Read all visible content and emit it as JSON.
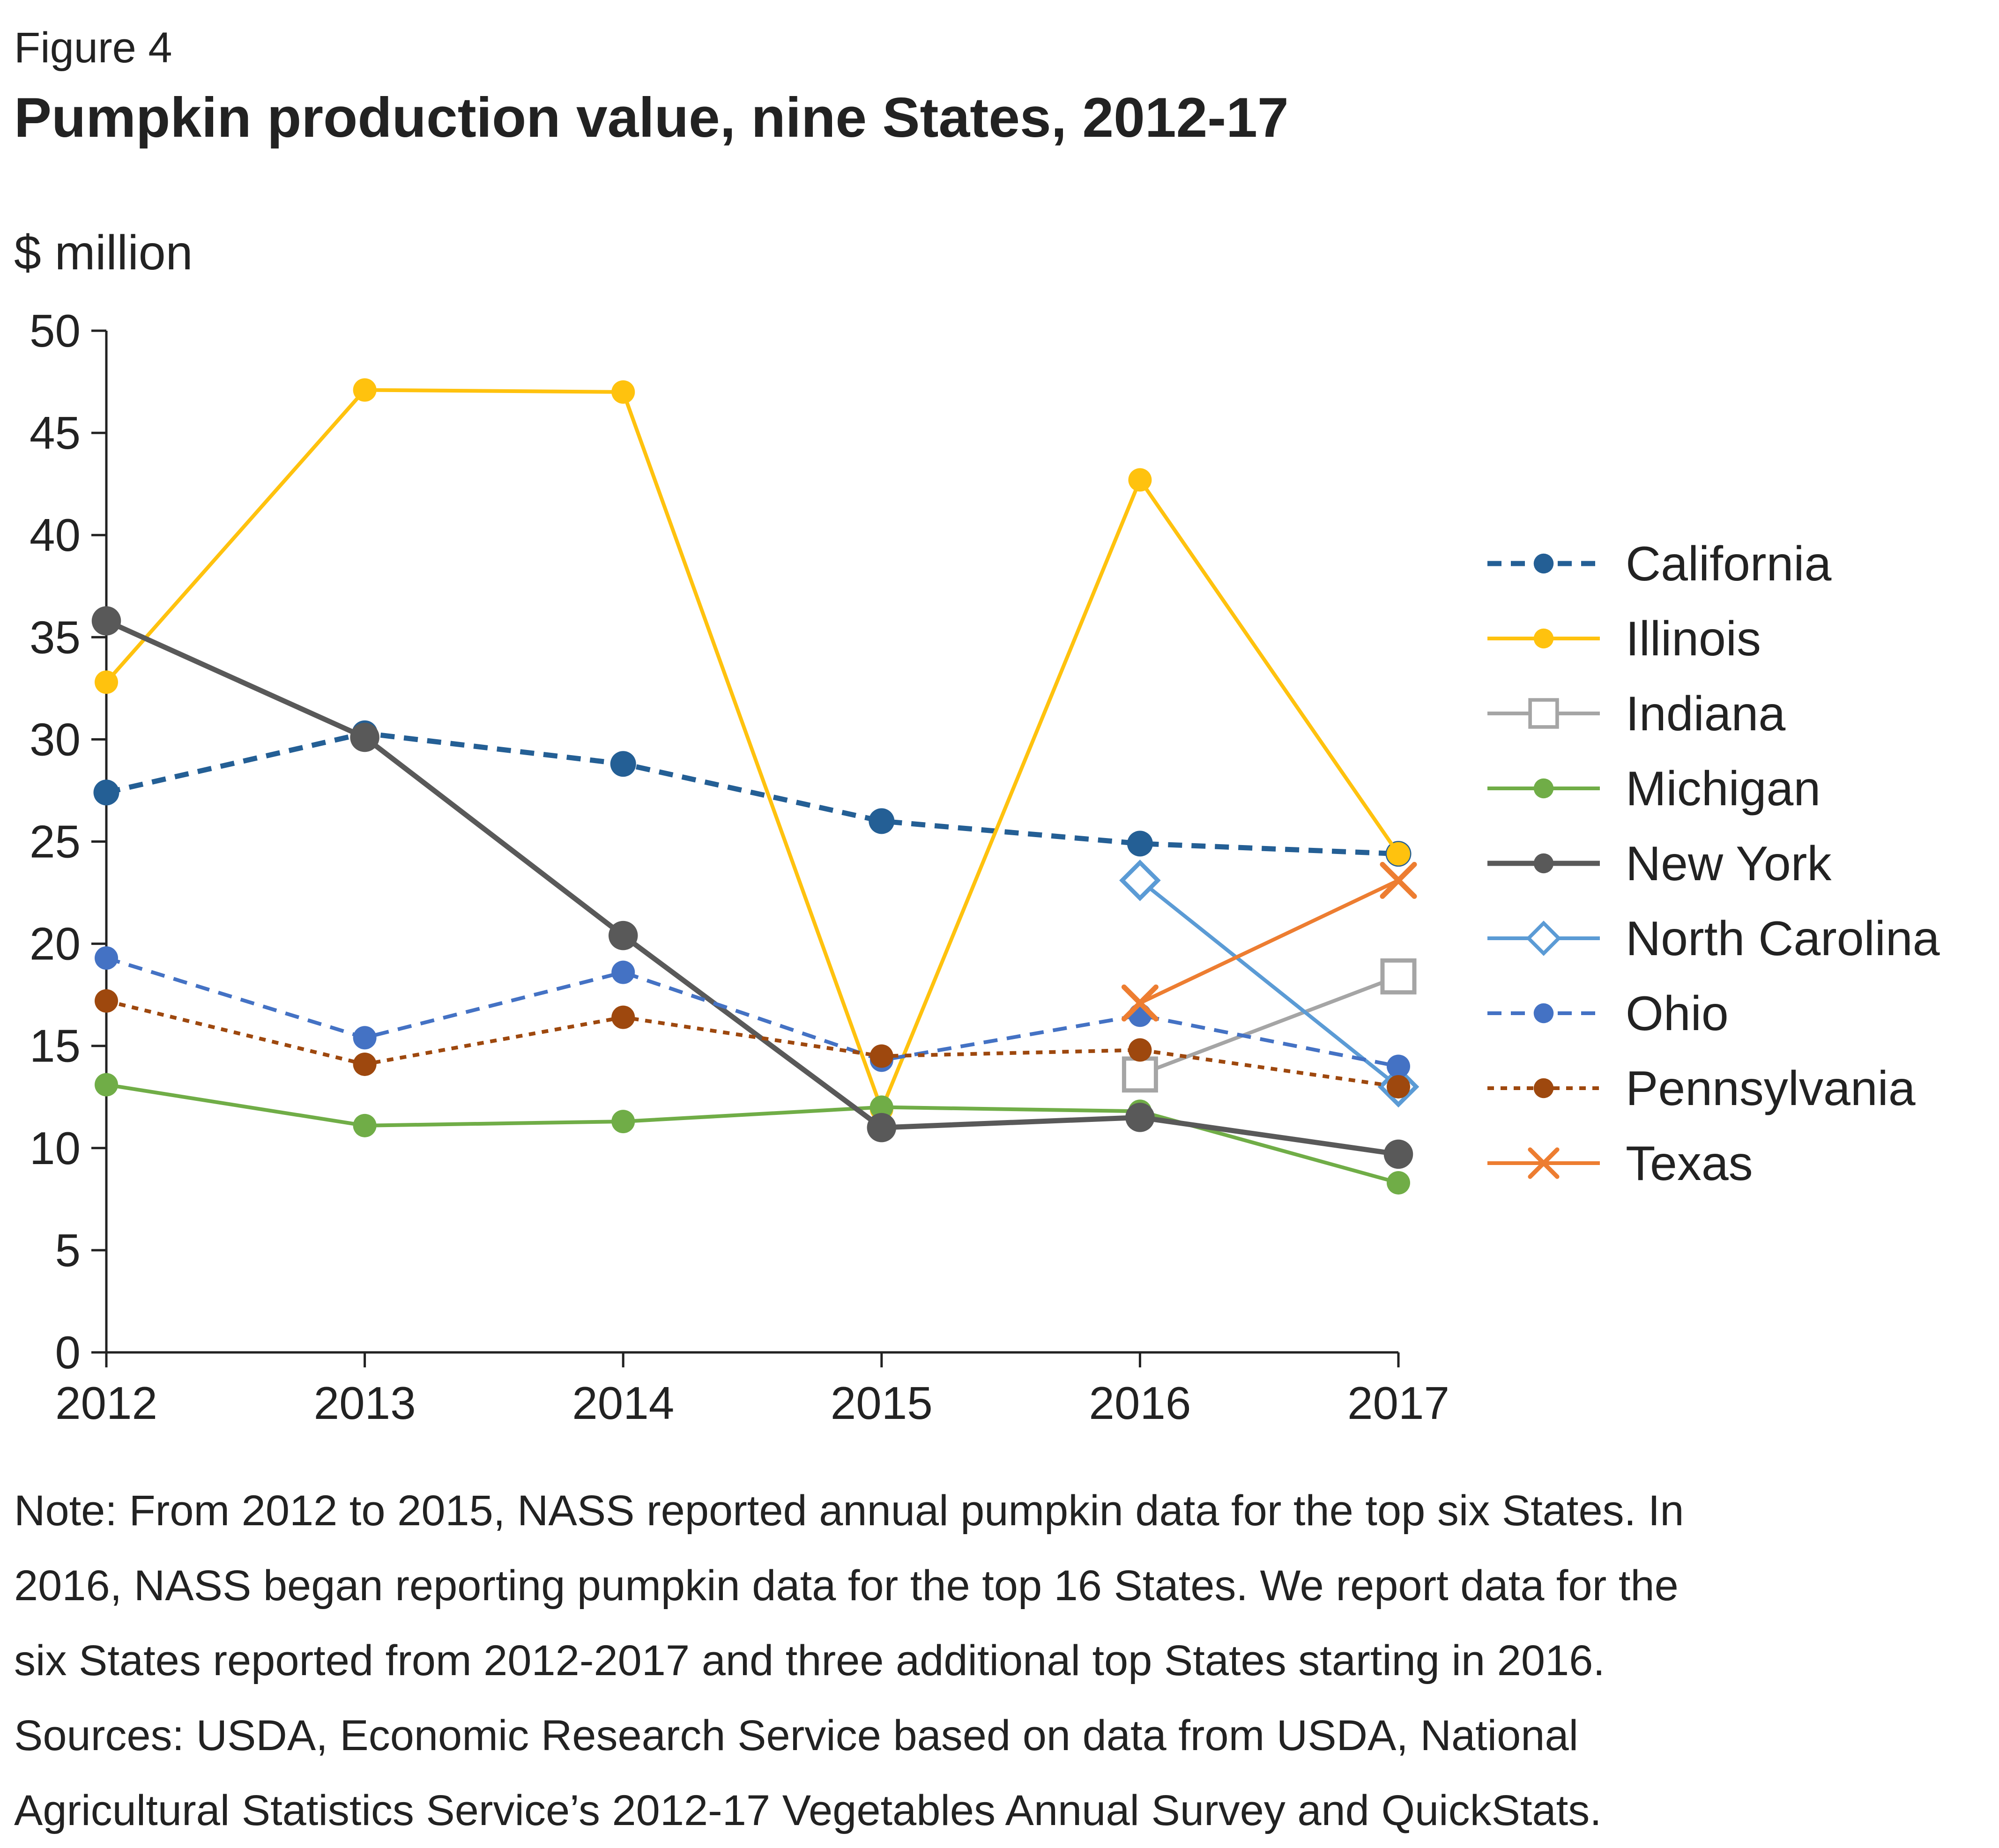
{
  "figure_label": "Figure 4",
  "title": "Pumpkin production value, nine States, 2012-17",
  "notes": [
    "Note: From 2012 to 2015, NASS reported annual pumpkin data for the top six States. In",
    "2016, NASS began reporting pumpkin data for the top 16 States. We report data for the",
    "six States reported from 2012-2017 and three additional top States starting in 2016.",
    "Sources: USDA, Economic Research Service based on data from USDA, National",
    "Agricultural Statistics Service’s 2012-17 Vegetables Annual Survey and QuickStats."
  ],
  "chart_data": {
    "type": "line",
    "ylabel": "$ million",
    "xlabel": "",
    "x": [
      2012,
      2013,
      2014,
      2015,
      2016,
      2017
    ],
    "x_tick_labels": [
      "2012",
      "2013",
      "2014",
      "2015",
      "2016",
      "2017"
    ],
    "ylim": [
      0,
      50
    ],
    "y_ticks": [
      0,
      5,
      10,
      15,
      20,
      25,
      30,
      35,
      40,
      45,
      50
    ],
    "grid": false,
    "legend_position": "right",
    "series": [
      {
        "name": "California",
        "color": "#245f95",
        "dash": "dashed",
        "marker": "circle",
        "values": [
          27.4,
          30.3,
          28.8,
          26.0,
          24.9,
          24.4
        ]
      },
      {
        "name": "Illinois",
        "color": "#ffc20e",
        "dash": "solid",
        "marker": "circle",
        "values": [
          32.8,
          47.1,
          47.0,
          11.9,
          42.7,
          24.4
        ]
      },
      {
        "name": "Indiana",
        "color": "#a5a5a5",
        "dash": "solid",
        "marker": "square",
        "values": [
          null,
          null,
          null,
          null,
          13.6,
          18.4
        ]
      },
      {
        "name": "Michigan",
        "color": "#70ad47",
        "dash": "solid",
        "marker": "circle",
        "values": [
          13.1,
          11.1,
          11.3,
          12.0,
          11.8,
          8.3
        ]
      },
      {
        "name": "New York",
        "color": "#595959",
        "dash": "solid",
        "marker": "circle",
        "values": [
          35.8,
          30.1,
          20.4,
          11.0,
          11.5,
          9.7
        ]
      },
      {
        "name": "North Carolina",
        "color": "#5b9bd5",
        "dash": "solid",
        "marker": "diamond",
        "values": [
          null,
          null,
          null,
          null,
          23.1,
          13.0
        ]
      },
      {
        "name": "Ohio",
        "color": "#4472c4",
        "dash": "dashed",
        "marker": "circle",
        "values": [
          19.3,
          15.4,
          18.6,
          14.3,
          16.5,
          14.0
        ]
      },
      {
        "name": "Pennsylvania",
        "color": "#9e480e",
        "dash": "dotted",
        "marker": "circle",
        "values": [
          17.2,
          14.1,
          16.4,
          14.5,
          14.8,
          13.0
        ]
      },
      {
        "name": "Texas",
        "color": "#ed7d31",
        "dash": "solid",
        "marker": "x",
        "values": [
          null,
          null,
          null,
          null,
          17.1,
          23.1
        ]
      }
    ]
  }
}
